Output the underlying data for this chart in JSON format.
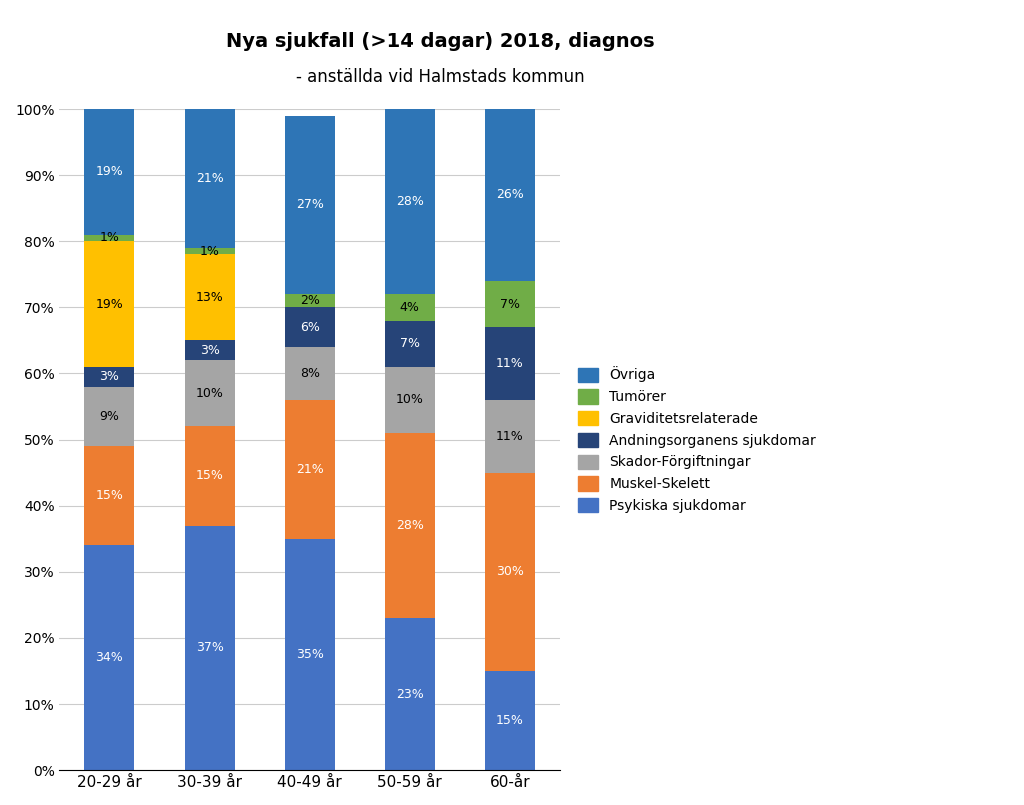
{
  "title_line1": "Nya sjukfall (>14 dagar) 2018, diagnos",
  "title_line2": "- anställda vid Halmstads kommun",
  "categories": [
    "20-29 år",
    "30-39 år",
    "40-49 år",
    "50-59 år",
    "60-år"
  ],
  "series": {
    "Psykiska sjukdomar": [
      34,
      37,
      35,
      23,
      15
    ],
    "Muskel-Skelett": [
      15,
      15,
      21,
      28,
      30
    ],
    "Skador-Förgiftningar": [
      9,
      10,
      8,
      10,
      11
    ],
    "Andningsorganens sjukdomar": [
      3,
      3,
      6,
      7,
      11
    ],
    "Graviditetsrelaterade": [
      19,
      13,
      0,
      0,
      0
    ],
    "Tumörer": [
      1,
      1,
      2,
      4,
      7
    ],
    "Övriga": [
      19,
      21,
      27,
      28,
      26
    ]
  },
  "colors": {
    "Psykiska sjukdomar": "#4472C4",
    "Muskel-Skelett": "#ED7D31",
    "Skador-Förgiftningar": "#A5A5A5",
    "Andningsorganens sjukdomar": "#264478",
    "Graviditetsrelaterade": "#FFC000",
    "Tumörer": "#70AD47",
    "Övriga": "#2E75B6"
  },
  "text_colors": {
    "Psykiska sjukdomar": "white",
    "Muskel-Skelett": "white",
    "Skador-Förgiftningar": "black",
    "Andningsorganens sjukdomar": "white",
    "Graviditetsrelaterade": "black",
    "Tumörer": "black",
    "Övriga": "white"
  },
  "legend_order": [
    "Övriga",
    "Tumörer",
    "Graviditetsrelaterade",
    "Andningsorganens sjukdomar",
    "Skador-Förgiftningar",
    "Muskel-Skelett",
    "Psykiska sjukdomar"
  ],
  "draw_order": [
    "Psykiska sjukdomar",
    "Muskel-Skelett",
    "Skador-Förgiftningar",
    "Andningsorganens sjukdomar",
    "Graviditetsrelaterade",
    "Tumörer",
    "Övriga"
  ],
  "ylim": [
    0,
    100
  ],
  "ytick_labels": [
    "0%",
    "10%",
    "20%",
    "30%",
    "40%",
    "50%",
    "60%",
    "70%",
    "80%",
    "90%",
    "100%"
  ],
  "background_color": "#FFFFFF",
  "bar_width": 0.5
}
